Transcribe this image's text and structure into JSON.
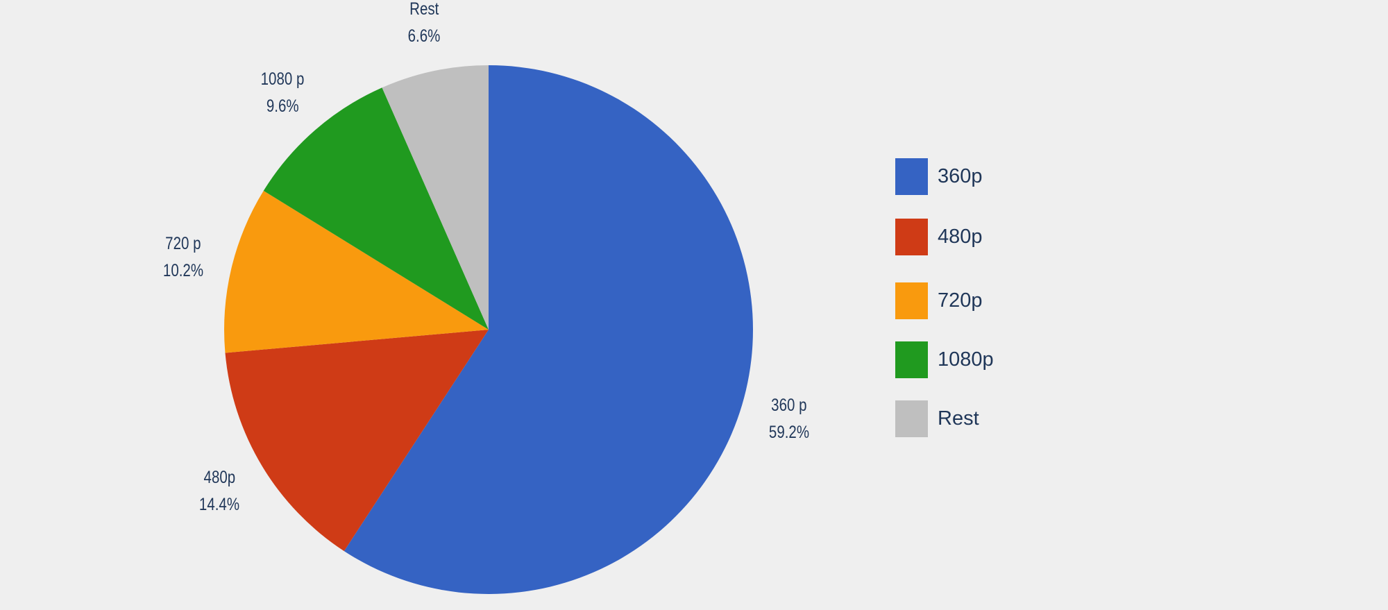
{
  "chart_data": {
    "type": "pie",
    "title": "",
    "start_angle_deg": 0,
    "direction": "clockwise",
    "slices": [
      {
        "key": "360p",
        "label": "360 p",
        "percent_label": "59.2%",
        "value": 59.2,
        "color": "#3563c3"
      },
      {
        "key": "480p",
        "label": "480p",
        "percent_label": "14.4%",
        "value": 14.4,
        "color": "#cf3b16"
      },
      {
        "key": "720p",
        "label": "720 p",
        "percent_label": "10.2%",
        "value": 10.2,
        "color": "#f99a0e"
      },
      {
        "key": "1080p",
        "label": "1080 p",
        "percent_label": "9.6%",
        "value": 9.6,
        "color": "#209a1f"
      },
      {
        "key": "rest",
        "label": "Rest",
        "percent_label": "6.6%",
        "value": 6.6,
        "color": "#bfbfbf"
      }
    ],
    "legend": {
      "position": "right",
      "entries": [
        {
          "label": "360p",
          "color": "#3563c3"
        },
        {
          "label": "480p",
          "color": "#cf3b16"
        },
        {
          "label": "720p",
          "color": "#f99a0e"
        },
        {
          "label": "1080p",
          "color": "#209a1f"
        },
        {
          "label": "Rest",
          "color": "#bfbfbf"
        }
      ]
    }
  },
  "colors": {
    "background": "#efefef",
    "text": "#1f3658"
  }
}
